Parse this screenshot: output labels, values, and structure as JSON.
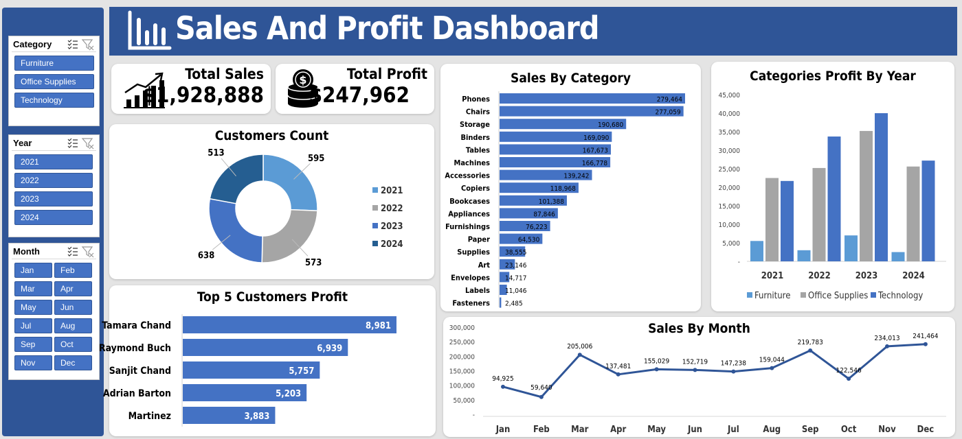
{
  "header": {
    "title": "Sales And Profit Dashboard"
  },
  "slicers": {
    "category": {
      "title": "Category",
      "items": [
        "Furniture",
        "Office Supplies",
        "Technology"
      ]
    },
    "year": {
      "title": "Year",
      "items": [
        "2021",
        "2022",
        "2023",
        "2024"
      ]
    },
    "month": {
      "title": "Month",
      "items": [
        "Jan",
        "Feb",
        "Mar",
        "Apr",
        "May",
        "Jun",
        "Jul",
        "Aug",
        "Sep",
        "Oct",
        "Nov",
        "Dec"
      ]
    }
  },
  "kpis": {
    "total_sales": {
      "label": "Total Sales",
      "value": "$1,928,888"
    },
    "total_profit": {
      "label": "Total Profit",
      "value": "$247,962"
    }
  },
  "colors": {
    "header": "#2f5597",
    "accent": "#4472c4",
    "light_blue": "#5b9bd5",
    "gray": "#a5a5a5",
    "dark_blue": "#255e91"
  },
  "chart_data": [
    {
      "id": "customers_count",
      "type": "pie",
      "title": "Customers Count",
      "categories": [
        "2021",
        "2022",
        "2023",
        "2024"
      ],
      "values": [
        595,
        573,
        638,
        513
      ],
      "legend": "right"
    },
    {
      "id": "sales_by_category",
      "type": "bar",
      "orientation": "horizontal",
      "title": "Sales By Category",
      "categories": [
        "Phones",
        "Chairs",
        "Storage",
        "Binders",
        "Tables",
        "Machines",
        "Accessories",
        "Copiers",
        "Bookcases",
        "Appliances",
        "Furnishings",
        "Paper",
        "Supplies",
        "Art",
        "Envelopes",
        "Labels",
        "Fasteners"
      ],
      "values": [
        279464,
        277059,
        190680,
        169090,
        167673,
        166778,
        139242,
        118968,
        101388,
        87846,
        76223,
        64530,
        38555,
        23146,
        14717,
        11046,
        2485
      ],
      "value_labels": [
        "279,464",
        "277,059",
        "190,680",
        "169,090",
        "167,673",
        "166,778",
        "139,242",
        "118,968",
        "101,388",
        "87,846",
        "76,223",
        "64,530",
        "38,555",
        "23,146",
        "14,717",
        "11,046",
        "2,485"
      ]
    },
    {
      "id": "categories_profit_by_year",
      "type": "bar",
      "title": "Categories Profit By Year",
      "categories": [
        "2021",
        "2022",
        "2023",
        "2024"
      ],
      "series": [
        {
          "name": "Furniture",
          "values": [
            5500,
            3000,
            7000,
            2500
          ]
        },
        {
          "name": "Office Supplies",
          "values": [
            22500,
            25200,
            35200,
            25600
          ]
        },
        {
          "name": "Technology",
          "values": [
            21700,
            33700,
            40000,
            27200
          ]
        }
      ],
      "ylim": [
        0,
        45000
      ],
      "yticks": [
        "-",
        "5,000",
        "10,000",
        "15,000",
        "20,000",
        "25,000",
        "30,000",
        "35,000",
        "40,000",
        "45,000"
      ],
      "legend": "bottom"
    },
    {
      "id": "top_5_customers_profit",
      "type": "bar",
      "orientation": "horizontal",
      "title": "Top 5 Customers Profit",
      "categories": [
        "Tamara Chand",
        "Raymond Buch",
        "Sanjit Chand",
        "Adrian Barton",
        "Martinez"
      ],
      "values": [
        8981,
        6939,
        5757,
        5203,
        3883
      ],
      "value_labels": [
        "8,981",
        "6,939",
        "5,757",
        "5,203",
        "3,883"
      ]
    },
    {
      "id": "sales_by_month",
      "type": "line",
      "title": "Sales By Month",
      "categories": [
        "Jan",
        "Feb",
        "Mar",
        "Apr",
        "May",
        "Jun",
        "Jul",
        "Aug",
        "Sep",
        "Oct",
        "Nov",
        "Dec"
      ],
      "values": [
        94925,
        59640,
        205006,
        137481,
        155029,
        152719,
        147238,
        159044,
        219783,
        122546,
        234013,
        241464
      ],
      "value_labels": [
        "94,925",
        "59,640",
        "205,006",
        "137,481",
        "155,029",
        "152,719",
        "147,238",
        "159,044",
        "219,783",
        "122,546",
        "234,013",
        "241,464"
      ],
      "ylim": [
        0,
        300000
      ],
      "yticks": [
        "-",
        "50,000",
        "100,000",
        "150,000",
        "200,000",
        "250,000",
        "300,000"
      ]
    }
  ]
}
